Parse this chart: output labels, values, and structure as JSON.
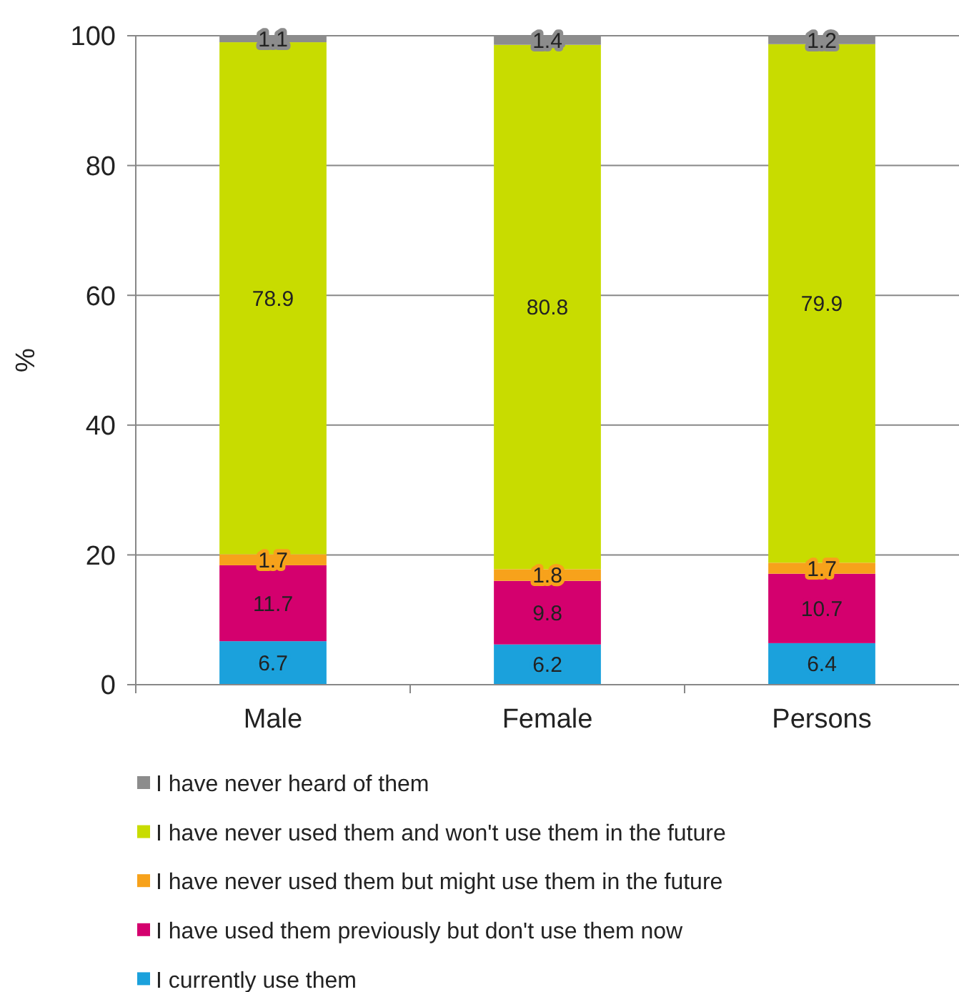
{
  "chart_data": {
    "type": "bar",
    "stacked": true,
    "ylabel": "%",
    "categories": [
      "Male",
      "Female",
      "Persons"
    ],
    "series": [
      {
        "name": "I currently use them",
        "color": "#1ba1dc",
        "values": [
          6.7,
          6.2,
          6.4
        ]
      },
      {
        "name": "I have used them previously but don't use them now",
        "color": "#d4006e",
        "values": [
          11.7,
          9.8,
          10.7
        ]
      },
      {
        "name": "I have never used them but might use them in the future",
        "color": "#f7a21b",
        "values": [
          1.7,
          1.8,
          1.7
        ]
      },
      {
        "name": "I have never used them and won't use them in the future",
        "color": "#c8dc00",
        "values": [
          78.9,
          80.8,
          79.9
        ]
      },
      {
        "name": "I have never heard of them",
        "color": "#8c8c8c",
        "values": [
          1.1,
          1.4,
          1.2
        ]
      }
    ],
    "ylim": [
      0,
      100
    ],
    "yticks": [
      0,
      20,
      40,
      60,
      80,
      100
    ],
    "grid": "y",
    "data_labels": true,
    "legend": "bottom"
  }
}
